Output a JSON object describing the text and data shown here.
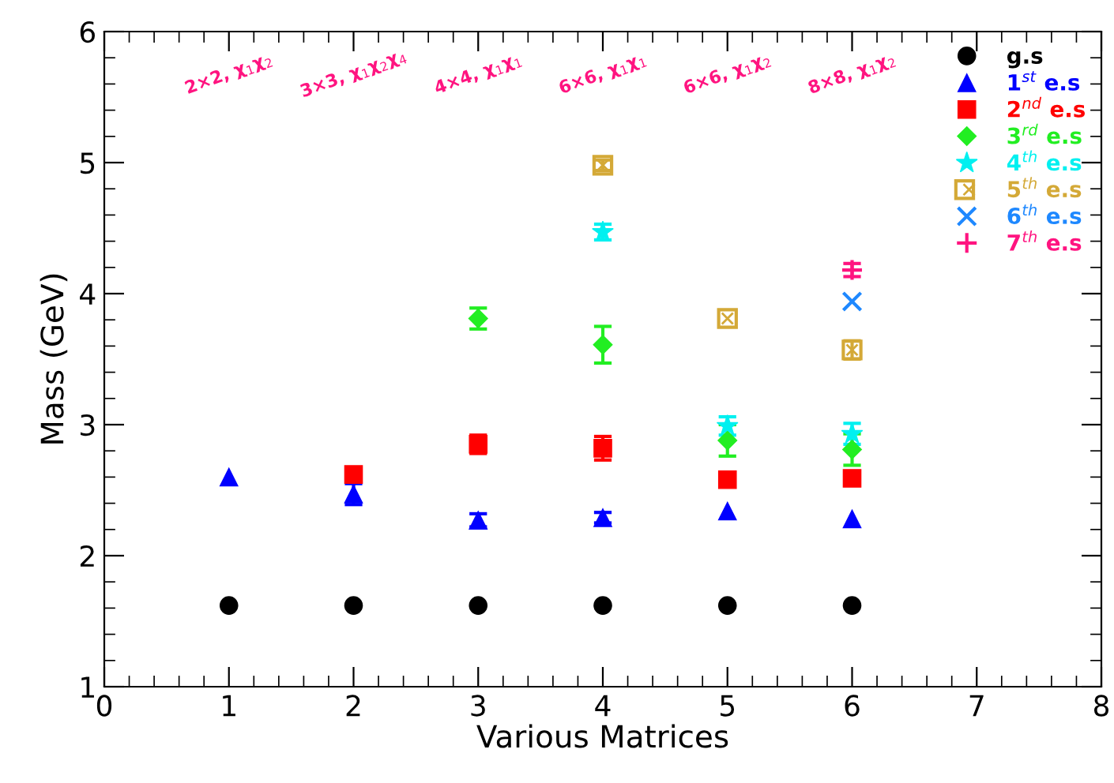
{
  "chart_data": {
    "type": "scatter",
    "xlabel": "Various Matrices",
    "ylabel": "Mass (GeV)",
    "xlim": [
      0,
      8
    ],
    "xticks": [
      0,
      1,
      2,
      3,
      4,
      5,
      6,
      7,
      8
    ],
    "ylim": [
      1,
      6
    ],
    "yticks": [
      1,
      2,
      3,
      4,
      5,
      6
    ],
    "grid": false,
    "legend": "top right",
    "series": [
      {
        "name": "g.s",
        "color": "#000000",
        "marker": "circle",
        "x": [
          1,
          2,
          3,
          4,
          5,
          6
        ],
        "values": [
          1.62,
          1.62,
          1.62,
          1.62,
          1.62,
          1.62
        ]
      },
      {
        "name": "1$^{st}$ e.s",
        "color": "#0000ff",
        "marker": "triangle",
        "x": [
          1,
          2,
          3,
          4,
          5,
          6
        ],
        "values": [
          2.6,
          2.47,
          2.27,
          2.29,
          2.34,
          2.28
        ],
        "errors": [
          null,
          0.08,
          0.05,
          0.04,
          null,
          null
        ]
      },
      {
        "name": "2$^{nd}$ e.s",
        "color": "#ff0000",
        "marker": "square",
        "x": [
          2,
          3,
          4,
          5,
          6
        ],
        "values": [
          2.62,
          2.85,
          2.82,
          2.58,
          2.59
        ],
        "errors": [
          null,
          0.07,
          0.09,
          null,
          null
        ]
      },
      {
        "name": "3$^{rd}$ e.s",
        "color": "#22ee22",
        "marker": "diamond",
        "x": [
          3,
          4,
          5,
          6
        ],
        "values": [
          3.81,
          3.61,
          2.88,
          2.81
        ],
        "errors": [
          0.08,
          0.14,
          0.12,
          0.12
        ]
      },
      {
        "name": "4$^{th}$ e.s",
        "color": "#00f0f0",
        "marker": "star",
        "x": [
          4,
          5,
          6
        ],
        "values": [
          4.47,
          2.99,
          2.93
        ],
        "errors": [
          0.06,
          0.07,
          0.08
        ]
      },
      {
        "name": "5$^{th}$ e.s",
        "color": "#d4a937",
        "marker": "square_x",
        "x": [
          4,
          5,
          6
        ],
        "values": [
          4.98,
          3.81,
          3.57
        ],
        "errors": [
          0.04,
          null,
          0.07
        ]
      },
      {
        "name": "6$^{th}$ e.s",
        "color": "#1e88ff",
        "marker": "cross",
        "x": [
          6
        ],
        "values": [
          3.94
        ]
      },
      {
        "name": "7$^{th}$ e.s",
        "color": "#ff1480",
        "marker": "plus",
        "x": [
          6
        ],
        "values": [
          4.18
        ],
        "errors": [
          0.05
        ]
      }
    ],
    "annotations": [
      "2×2, χ$_{1}$χ$_{2}$",
      "3×3, χ$_{1}$χ$_{2}$χ$_{4}$",
      "4×4, χ$_{1}$χ$_{1}$",
      "6×6, χ$_{1}$χ$_{1}$",
      "6×6, χ$_{1}$χ$_{2}$",
      "8×8, χ$_{1}$χ$_{2}$"
    ]
  }
}
